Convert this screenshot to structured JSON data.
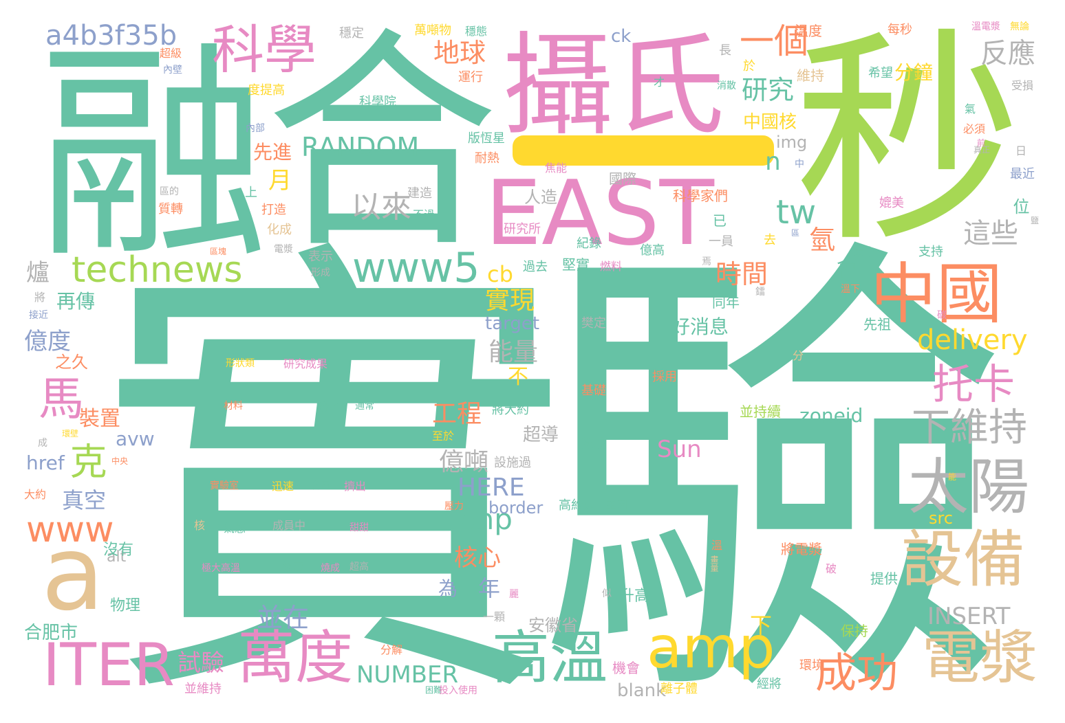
{
  "palette": {
    "teal": "#66C2A5",
    "orange": "#FC8D62",
    "blue": "#8DA0CB",
    "pink": "#E78AC3",
    "green": "#A6D854",
    "yellow": "#FFD92F",
    "tan": "#E5C494",
    "gray": "#B3B3B3"
  },
  "dash_color": "#FFD92F",
  "words": [
    {
      "text": "實",
      "color": "teal"
    },
    {
      "text": "驗",
      "color": "teal"
    },
    {
      "text": "融",
      "color": "teal"
    },
    {
      "text": "合",
      "color": "teal"
    },
    {
      "text": "秒",
      "color": "green"
    },
    {
      "text": "攝氏",
      "color": "pink"
    },
    {
      "text": "EAST",
      "color": "pink"
    },
    {
      "text": "中國",
      "color": "orange"
    },
    {
      "text": "a",
      "color": "tan"
    },
    {
      "text": "設備",
      "color": "tan"
    },
    {
      "text": "電漿",
      "color": "tan"
    },
    {
      "text": "太陽",
      "color": "gray"
    },
    {
      "text": "高溫",
      "color": "teal"
    },
    {
      "text": "萬度",
      "color": "pink"
    },
    {
      "text": "amp",
      "color": "yellow"
    },
    {
      "text": "ITER",
      "color": "pink"
    },
    {
      "text": "科學",
      "color": "pink"
    },
    {
      "text": "technews",
      "color": "green"
    },
    {
      "text": "www5",
      "color": "teal"
    },
    {
      "text": "成功",
      "color": "orange"
    },
    {
      "text": "托卡",
      "color": "pink"
    },
    {
      "text": "下維持",
      "color": "gray"
    },
    {
      "text": "www",
      "color": "orange"
    },
    {
      "text": "a4b3f35b",
      "color": "blue"
    },
    {
      "text": "一個",
      "color": "orange"
    },
    {
      "text": "以來",
      "color": "gray"
    },
    {
      "text": "RANDOM",
      "color": "teal"
    },
    {
      "text": "delivery",
      "color": "yellow"
    },
    {
      "text": "php",
      "color": "teal"
    },
    {
      "text": "tw",
      "color": "teal"
    },
    {
      "text": "馬",
      "color": "pink"
    },
    {
      "text": "克",
      "color": "green"
    },
    {
      "text": "地球",
      "color": "orange"
    },
    {
      "text": "研究",
      "color": "teal"
    },
    {
      "text": "反應",
      "color": "gray"
    },
    {
      "text": "這些",
      "color": "gray"
    },
    {
      "text": "時間",
      "color": "orange"
    },
    {
      "text": "實現",
      "color": "yellow"
    },
    {
      "text": "能量",
      "color": "gray"
    },
    {
      "text": "工程",
      "color": "orange"
    },
    {
      "text": "億噸",
      "color": "gray"
    },
    {
      "text": "HERE",
      "color": "blue"
    },
    {
      "text": "核心",
      "color": "orange"
    },
    {
      "text": "年",
      "color": "blue"
    },
    {
      "text": "並在",
      "color": "blue"
    },
    {
      "text": "NUMBER",
      "color": "teal"
    },
    {
      "text": "試驗",
      "color": "pink"
    },
    {
      "text": "INSERT",
      "color": "gray"
    },
    {
      "text": "Sun",
      "color": "pink"
    },
    {
      "text": "zoneid",
      "color": "teal"
    },
    {
      "text": "好消息",
      "color": "teal"
    },
    {
      "text": "cb",
      "color": "yellow"
    },
    {
      "text": "月",
      "color": "yellow"
    },
    {
      "text": "先進",
      "color": "orange"
    },
    {
      "text": "億度",
      "color": "blue"
    },
    {
      "text": "爐",
      "color": "gray"
    },
    {
      "text": "再傳",
      "color": "teal"
    },
    {
      "text": "裝置",
      "color": "orange"
    },
    {
      "text": "真空",
      "color": "blue"
    },
    {
      "text": "avw",
      "color": "blue"
    },
    {
      "text": "href",
      "color": "blue"
    },
    {
      "text": "n",
      "color": "teal"
    },
    {
      "text": "氫",
      "color": "orange"
    },
    {
      "text": "會",
      "color": "teal"
    },
    {
      "text": "分鐘",
      "color": "yellow"
    },
    {
      "text": "中國核",
      "color": "yellow"
    },
    {
      "text": "img",
      "color": "gray"
    },
    {
      "text": "人造",
      "color": "gray"
    },
    {
      "text": "位",
      "color": "teal"
    },
    {
      "text": "ck",
      "color": "blue"
    },
    {
      "text": "target",
      "color": "blue"
    },
    {
      "text": "border",
      "color": "blue"
    },
    {
      "text": "src",
      "color": "yellow"
    },
    {
      "text": "alt",
      "color": "gray"
    },
    {
      "text": "blank",
      "color": "gray"
    },
    {
      "text": "安徽省",
      "color": "gray"
    },
    {
      "text": "合肥市",
      "color": "teal"
    },
    {
      "text": "物理",
      "color": "teal"
    },
    {
      "text": "沒有",
      "color": "teal"
    },
    {
      "text": "超導",
      "color": "gray"
    },
    {
      "text": "為",
      "color": "blue"
    },
    {
      "text": "下",
      "color": "yellow"
    },
    {
      "text": "不",
      "color": "yellow"
    },
    {
      "text": "之久",
      "color": "orange"
    },
    {
      "text": "並維持",
      "color": "pink"
    },
    {
      "text": "分解",
      "color": "orange"
    },
    {
      "text": "升高",
      "color": "teal"
    },
    {
      "text": "保持",
      "color": "green"
    },
    {
      "text": "提供",
      "color": "teal"
    },
    {
      "text": "經將",
      "color": "teal"
    },
    {
      "text": "環境",
      "color": "orange"
    },
    {
      "text": "機會",
      "color": "pink"
    },
    {
      "text": "將電漿",
      "color": "orange"
    },
    {
      "text": "並持續",
      "color": "green"
    },
    {
      "text": "先祖",
      "color": "teal"
    },
    {
      "text": "同年",
      "color": "teal"
    },
    {
      "text": "集中",
      "color": "teal"
    },
    {
      "text": "支持",
      "color": "teal"
    },
    {
      "text": "去",
      "color": "yellow"
    },
    {
      "text": "已",
      "color": "teal"
    },
    {
      "text": "一員",
      "color": "gray"
    },
    {
      "text": "億高",
      "color": "teal"
    },
    {
      "text": "研究所",
      "color": "pink"
    },
    {
      "text": "科學家們",
      "color": "orange"
    },
    {
      "text": "國際",
      "color": "gray"
    },
    {
      "text": "建造",
      "color": "gray"
    },
    {
      "text": "不過",
      "color": "teal"
    },
    {
      "text": "打造",
      "color": "orange"
    },
    {
      "text": "化成",
      "color": "tan"
    },
    {
      "text": "表示",
      "color": "gray"
    },
    {
      "text": "過去",
      "color": "teal"
    },
    {
      "text": "堅實",
      "color": "teal"
    },
    {
      "text": "燃料",
      "color": "pink"
    },
    {
      "text": "紀錄",
      "color": "teal"
    },
    {
      "text": "版恆星",
      "color": "teal"
    },
    {
      "text": "耐熱",
      "color": "orange"
    },
    {
      "text": "焦能",
      "color": "pink"
    },
    {
      "text": "萬噸物",
      "color": "yellow"
    },
    {
      "text": "穩態",
      "color": "teal"
    },
    {
      "text": "運行",
      "color": "orange"
    },
    {
      "text": "溫度",
      "color": "orange"
    },
    {
      "text": "每秒",
      "color": "orange"
    },
    {
      "text": "溫電漿",
      "color": "pink"
    },
    {
      "text": "無論",
      "color": "yellow"
    },
    {
      "text": "維持",
      "color": "tan"
    },
    {
      "text": "希望",
      "color": "teal"
    },
    {
      "text": "受損",
      "color": "gray"
    },
    {
      "text": "氣",
      "color": "teal"
    },
    {
      "text": "必須",
      "color": "orange"
    },
    {
      "text": "最近",
      "color": "blue"
    },
    {
      "text": "媲美",
      "color": "pink"
    },
    {
      "text": "日",
      "color": "gray"
    },
    {
      "text": "穩定",
      "color": "gray"
    },
    {
      "text": "超級",
      "color": "orange"
    },
    {
      "text": "內壁",
      "color": "blue"
    },
    {
      "text": "科學院",
      "color": "teal"
    },
    {
      "text": "度提高",
      "color": "yellow"
    },
    {
      "text": "內部",
      "color": "blue"
    },
    {
      "text": "質轉",
      "color": "orange"
    },
    {
      "text": "上",
      "color": "teal"
    },
    {
      "text": "長",
      "color": "gray"
    },
    {
      "text": "於",
      "color": "yellow"
    },
    {
      "text": "消散",
      "color": "teal"
    },
    {
      "text": "才",
      "color": "teal"
    },
    {
      "text": "樊定",
      "color": "gray"
    },
    {
      "text": "分",
      "color": "tan"
    },
    {
      "text": "基礎",
      "color": "orange"
    },
    {
      "text": "採用",
      "color": "orange"
    },
    {
      "text": "熱核",
      "color": "teal"
    },
    {
      "text": "形狀類",
      "color": "yellow"
    },
    {
      "text": "研究成果",
      "color": "pink"
    },
    {
      "text": "材料",
      "color": "orange"
    },
    {
      "text": "鎔化",
      "color": "teal"
    },
    {
      "text": "通常",
      "color": "teal"
    },
    {
      "text": "將大約",
      "color": "teal"
    },
    {
      "text": "設施過",
      "color": "gray"
    },
    {
      "text": "高約束",
      "color": "teal"
    },
    {
      "text": "主因",
      "color": "teal"
    },
    {
      "text": "實驗室",
      "color": "orange"
    },
    {
      "text": "迅速",
      "color": "yellow"
    },
    {
      "text": "會電",
      "color": "teal"
    },
    {
      "text": "擠出",
      "color": "pink"
    },
    {
      "text": "壓力",
      "color": "orange"
    },
    {
      "text": "甜甜",
      "color": "pink"
    },
    {
      "text": "核",
      "color": "tan"
    },
    {
      "text": "氣態",
      "color": "teal"
    },
    {
      "text": "成員中",
      "color": "gray"
    },
    {
      "text": "極大高溫",
      "color": "pink"
    },
    {
      "text": "放電",
      "color": "teal"
    },
    {
      "text": "燒成",
      "color": "pink"
    },
    {
      "text": "超高",
      "color": "gray"
    },
    {
      "text": "大約",
      "color": "orange"
    },
    {
      "text": "中央",
      "color": "orange"
    },
    {
      "text": "環壁",
      "color": "yellow"
    },
    {
      "text": "至於",
      "color": "yellow"
    },
    {
      "text": "困難",
      "color": "teal"
    },
    {
      "text": "投入使用",
      "color": "pink"
    },
    {
      "text": "一顆",
      "color": "gray"
    },
    {
      "text": "離子體",
      "color": "yellow"
    },
    {
      "text": "破",
      "color": "pink"
    },
    {
      "text": "溫",
      "color": "orange"
    },
    {
      "text": "畫量",
      "color": "tan"
    },
    {
      "text": "似",
      "color": "gray"
    },
    {
      "text": "麗",
      "color": "pink"
    },
    {
      "text": "溫下",
      "color": "orange"
    },
    {
      "text": "將",
      "color": "gray"
    },
    {
      "text": "接近",
      "color": "blue"
    },
    {
      "text": "形成",
      "color": "gray"
    },
    {
      "text": "成",
      "color": "gray"
    },
    {
      "text": "能",
      "color": "yellow"
    },
    {
      "text": "鐳",
      "color": "gray"
    },
    {
      "text": "碳",
      "color": "pink"
    },
    {
      "text": "焉",
      "color": "gray"
    },
    {
      "text": "區",
      "color": "blue"
    },
    {
      "text": "中",
      "color": "blue"
    },
    {
      "text": "真正",
      "color": "gray"
    },
    {
      "text": "前",
      "color": "pink"
    },
    {
      "text": "區塊",
      "color": "orange"
    },
    {
      "text": "鹽",
      "color": "gray"
    },
    {
      "text": "區的",
      "color": "gray"
    },
    {
      "text": "電漿",
      "color": "gray"
    }
  ]
}
